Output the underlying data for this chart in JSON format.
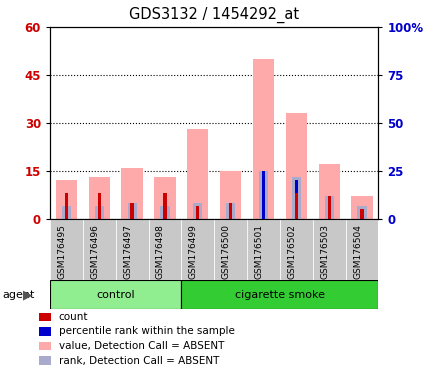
{
  "title": "GDS3132 / 1454292_at",
  "samples": [
    "GSM176495",
    "GSM176496",
    "GSM176497",
    "GSM176498",
    "GSM176499",
    "GSM176500",
    "GSM176501",
    "GSM176502",
    "GSM176503",
    "GSM176504"
  ],
  "absent_value_bars": [
    12,
    13,
    16,
    13,
    28,
    15,
    50,
    33,
    17,
    7
  ],
  "absent_rank_bars": [
    4,
    4,
    5,
    4,
    5,
    5,
    15,
    13,
    7,
    4
  ],
  "count_values": [
    8,
    8,
    5,
    8,
    4,
    5,
    0,
    8,
    7,
    3
  ],
  "percentile_rank_values": [
    3,
    3,
    4,
    3,
    4,
    4,
    15,
    12,
    6,
    3
  ],
  "ylim_left": [
    0,
    60
  ],
  "ylim_right": [
    0,
    100
  ],
  "yticks_left": [
    0,
    15,
    30,
    45,
    60
  ],
  "ytick_labels_left": [
    "0",
    "15",
    "30",
    "45",
    "60"
  ],
  "yticks_right": [
    0,
    25,
    50,
    75,
    100
  ],
  "ytick_labels_right": [
    "0",
    "25",
    "50",
    "75",
    "100%"
  ],
  "color_count": "#cc0000",
  "color_percentile": "#0000cc",
  "color_absent_value": "#ffaaaa",
  "color_absent_rank": "#aaaacc",
  "color_control_bg": "#90ee90",
  "color_smoke_bg": "#33cc33",
  "color_sample_bg": "#c8c8c8",
  "legend_items": [
    {
      "label": "count",
      "color": "#cc0000",
      "marker": "s"
    },
    {
      "label": "percentile rank within the sample",
      "color": "#0000cc",
      "marker": "s"
    },
    {
      "label": "value, Detection Call = ABSENT",
      "color": "#ffaaaa",
      "marker": "s"
    },
    {
      "label": "rank, Detection Call = ABSENT",
      "color": "#aaaacc",
      "marker": "s"
    }
  ],
  "n_control": 4,
  "n_smoke": 6
}
